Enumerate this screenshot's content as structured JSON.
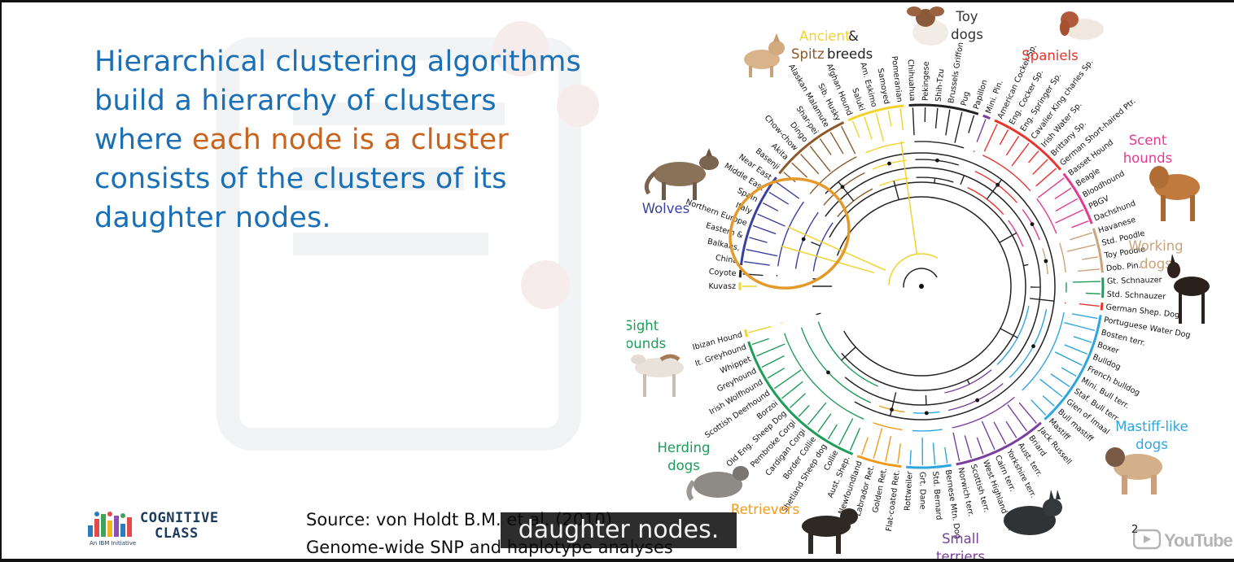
{
  "slide": {
    "body_segments": [
      {
        "text": "Hierarchical clustering algorithms build a hierarchy of clusters where ",
        "color": "#1a6fb5"
      },
      {
        "text": "each node is a cluster",
        "color": "#c8641e"
      },
      {
        "text": " consists of the clusters of its daughter nodes.",
        "color": "#1a6fb5"
      }
    ],
    "source_line1": "Source: von Holdt B.M. et al. (2010)",
    "source_line2": "Genome-wide SNP and haplotype analyses",
    "page_number": "2"
  },
  "caption": {
    "text": "daughter nodes."
  },
  "logo": {
    "line1": "COGNITIVE",
    "line2": "CLASS",
    "tagline": "An IBM Initiative"
  },
  "youtube": {
    "word": "YouTube"
  },
  "tree": {
    "groups": [
      {
        "name": "Ancient",
        "name2": "Spitz",
        "extra": "&",
        "extra2": "breeds",
        "color": "#f2d22e"
      },
      {
        "name": "Toy",
        "name2": "dogs",
        "color": "#333333"
      },
      {
        "name": "Spaniels",
        "color": "#e8342c"
      },
      {
        "name": "Scent",
        "name2": "hounds",
        "color": "#e23b93"
      },
      {
        "name": "Working",
        "name2": "dogs",
        "color": "#c9a37a"
      },
      {
        "name": "Mastiff-like",
        "name2": "dogs",
        "color": "#2ea6dd"
      },
      {
        "name": "Small",
        "name2": "terriers",
        "color": "#7b3f9e"
      },
      {
        "name": "Retrievers",
        "color": "#f29a1d"
      },
      {
        "name": "Herding",
        "name2": "dogs",
        "color": "#1f9c5a"
      },
      {
        "name": "Sight",
        "name2": "hounds",
        "color": "#1f9c5a"
      },
      {
        "name": "Wolves",
        "color": "#3b3f9e"
      }
    ],
    "breeds": [
      {
        "name": "Kuvasz",
        "color": "#f2d22e"
      },
      {
        "name": "Coyote",
        "color": "#222222"
      },
      {
        "name": "China",
        "color": "#3b3f9e"
      },
      {
        "name": "Balkans,",
        "color": "#3b3f9e"
      },
      {
        "name": "Eastern &",
        "color": "#3b3f9e"
      },
      {
        "name": "Northern Europe",
        "color": "#3b3f9e"
      },
      {
        "name": "Italy",
        "color": "#3b3f9e"
      },
      {
        "name": "Spain",
        "color": "#3b3f9e"
      },
      {
        "name": "Middle East",
        "color": "#3b3f9e"
      },
      {
        "name": "Near East",
        "color": "#3b3f9e"
      },
      {
        "name": "Basenji",
        "color": "#8a5a2b"
      },
      {
        "name": "Akita",
        "color": "#8a5a2b"
      },
      {
        "name": "Chow-chow",
        "color": "#8a5a2b"
      },
      {
        "name": "Dingo",
        "color": "#8a5a2b"
      },
      {
        "name": "Shar-pei",
        "color": "#8a5a2b"
      },
      {
        "name": "Alaskan Malamute",
        "color": "#8a5a2b"
      },
      {
        "name": "Sib. Husky",
        "color": "#8a5a2b"
      },
      {
        "name": "Afghan Hound",
        "color": "#f2d22e"
      },
      {
        "name": "Saluki",
        "color": "#f2d22e"
      },
      {
        "name": "Am. Eskimo",
        "color": "#f2d22e"
      },
      {
        "name": "Samoyed",
        "color": "#f2d22e"
      },
      {
        "name": "Pomeranian",
        "color": "#f2d22e"
      },
      {
        "name": "Chihuahua",
        "color": "#222222"
      },
      {
        "name": "Pekingese",
        "color": "#222222"
      },
      {
        "name": "Shih-Tzu",
        "color": "#222222"
      },
      {
        "name": "Brussels Griffon",
        "color": "#222222"
      },
      {
        "name": "Pug",
        "color": "#222222"
      },
      {
        "name": "Papillon",
        "color": "#222222"
      },
      {
        "name": "Mini. Pin.",
        "color": "#7b3f9e"
      },
      {
        "name": "American Cocker Sp.",
        "color": "#e8342c"
      },
      {
        "name": "Eng. Cocker Sp.",
        "color": "#e8342c"
      },
      {
        "name": "Eng. Springer Sp.",
        "color": "#e8342c"
      },
      {
        "name": "Cavalier King charles Sp.",
        "color": "#e8342c"
      },
      {
        "name": "Irish Water Sp.",
        "color": "#e8342c"
      },
      {
        "name": "Brittany Sp.",
        "color": "#e8342c"
      },
      {
        "name": "German Short-haired Ptr.",
        "color": "#e8342c"
      },
      {
        "name": "Basset Hound",
        "color": "#e23b93"
      },
      {
        "name": "Beagle",
        "color": "#e23b93"
      },
      {
        "name": "Bloodhound",
        "color": "#e23b93"
      },
      {
        "name": "PBGV",
        "color": "#e23b93"
      },
      {
        "name": "Dachshund",
        "color": "#e23b93"
      },
      {
        "name": "Havanese",
        "color": "#c9a37a"
      },
      {
        "name": "Std. Poodle",
        "color": "#c9a37a"
      },
      {
        "name": "Toy Poodle",
        "color": "#c9a37a"
      },
      {
        "name": "Dob. Pin.",
        "color": "#c9a37a"
      },
      {
        "name": "Gt. Schnauzer",
        "color": "#1f9c5a"
      },
      {
        "name": "Std. Schnauzer",
        "color": "#1f9c5a"
      },
      {
        "name": "German Shep. Dog",
        "color": "#e8342c"
      },
      {
        "name": "Portuguese Water Dog",
        "color": "#2ea6dd"
      },
      {
        "name": "Bosten terr.",
        "color": "#2ea6dd"
      },
      {
        "name": "Boxer",
        "color": "#2ea6dd"
      },
      {
        "name": "Bulldog",
        "color": "#2ea6dd"
      },
      {
        "name": "French bulldog",
        "color": "#2ea6dd"
      },
      {
        "name": "Mini. Bull terr.",
        "color": "#2ea6dd"
      },
      {
        "name": "Staf. Bull terr.",
        "color": "#2ea6dd"
      },
      {
        "name": "Glen of Imaal",
        "color": "#2ea6dd"
      },
      {
        "name": "Bull mastiff",
        "color": "#2ea6dd"
      },
      {
        "name": "Mastiff",
        "color": "#2ea6dd"
      },
      {
        "name": "Jack Russell",
        "color": "#7b3f9e"
      },
      {
        "name": "Briard",
        "color": "#7b3f9e"
      },
      {
        "name": "Aust. terr.",
        "color": "#7b3f9e"
      },
      {
        "name": "Yorkshire terr.",
        "color": "#7b3f9e"
      },
      {
        "name": "Cairn terr.",
        "color": "#7b3f9e"
      },
      {
        "name": "West Highland terr.",
        "color": "#7b3f9e"
      },
      {
        "name": "Scottish terr.",
        "color": "#7b3f9e"
      },
      {
        "name": "Norwich terr.",
        "color": "#7b3f9e"
      },
      {
        "name": "Bernese Mtn. Dog",
        "color": "#2ea6dd"
      },
      {
        "name": "Std. Bernard",
        "color": "#2ea6dd"
      },
      {
        "name": "Grt. Dane",
        "color": "#2ea6dd"
      },
      {
        "name": "Rottweiler",
        "color": "#2ea6dd"
      },
      {
        "name": "Flat-coated Ret.",
        "color": "#f29a1d"
      },
      {
        "name": "Golden Ret.",
        "color": "#f29a1d"
      },
      {
        "name": "Labrador Ret.",
        "color": "#f29a1d"
      },
      {
        "name": "Newfoundland",
        "color": "#f29a1d"
      },
      {
        "name": "Aust. Shep.",
        "color": "#1f9c5a"
      },
      {
        "name": "Collie",
        "color": "#1f9c5a"
      },
      {
        "name": "Shetland Sheep dog",
        "color": "#1f9c5a"
      },
      {
        "name": "Border Collie",
        "color": "#1f9c5a"
      },
      {
        "name": "Cardigan Corgi",
        "color": "#1f9c5a"
      },
      {
        "name": "Pembroke Corgi",
        "color": "#1f9c5a"
      },
      {
        "name": "Old Eng. Sheep Dog",
        "color": "#1f9c5a"
      },
      {
        "name": "Borzoi",
        "color": "#1f9c5a"
      },
      {
        "name": "Scottish Deerhound",
        "color": "#1f9c5a"
      },
      {
        "name": "Irish Wolfhound",
        "color": "#1f9c5a"
      },
      {
        "name": "Greyhound",
        "color": "#1f9c5a"
      },
      {
        "name": "Whippet",
        "color": "#1f9c5a"
      },
      {
        "name": "It. Greyhound",
        "color": "#1f9c5a"
      },
      {
        "name": "Ibizan Hound",
        "color": "#f2d22e"
      }
    ]
  }
}
